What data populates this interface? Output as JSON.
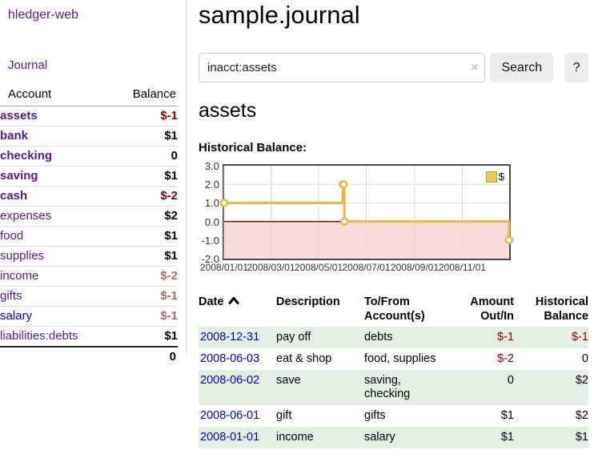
{
  "sidebar": {
    "brand": "hledger-web",
    "journal_link": "Journal",
    "accounts": {
      "headers": [
        "Account",
        "Balance"
      ],
      "rows": [
        {
          "name": "assets",
          "balance": "$-1"
        },
        {
          "name": "bank",
          "balance": "$1"
        },
        {
          "name": "checking",
          "balance": "0"
        },
        {
          "name": "saving",
          "balance": "$1"
        },
        {
          "name": "cash",
          "balance": "$-2"
        },
        {
          "name": "expenses",
          "balance": "$2"
        },
        {
          "name": "food",
          "balance": "$1"
        },
        {
          "name": "supplies",
          "balance": "$1"
        },
        {
          "name": "income",
          "balance": "$-2"
        },
        {
          "name": "gifts",
          "balance": "$-1"
        },
        {
          "name": "salary",
          "balance": "$-1"
        },
        {
          "name": "liabilities:debts",
          "balance": "$1"
        }
      ],
      "total": "0"
    }
  },
  "page": {
    "title": "sample.journal"
  },
  "search": {
    "value": "inacct:assets",
    "clear_icon": "×",
    "button_label": "Search",
    "help_label": "?"
  },
  "account_view": {
    "heading": "assets",
    "chart_title": "Historical Balance:"
  },
  "chart_data": {
    "type": "line",
    "title": "Historical Balance",
    "series": [
      {
        "name": "$",
        "color": "#e3bb45",
        "step": true,
        "points": [
          {
            "x": "2008/01/01",
            "y": 1
          },
          {
            "x": "2008/06/01",
            "y": 2
          },
          {
            "x": "2008/06/02",
            "y": 2
          },
          {
            "x": "2008/06/03",
            "y": 0
          },
          {
            "x": "2008/12/31",
            "y": -1
          }
        ]
      }
    ],
    "x_ticks": [
      "2008/01/01",
      "2008/03/01",
      "2008/05/01",
      "2008/07/01",
      "2008/09/01",
      "2008/11/01"
    ],
    "y_ticks": [
      "3.0",
      "2.0",
      "1.0",
      "0.0",
      "-1.0",
      "-2.0"
    ],
    "xlim": [
      "2008/01/01",
      "2008/12/31"
    ],
    "ylim": [
      -2,
      3
    ],
    "legend": "$",
    "legend_position": "top-right",
    "grid": true,
    "negative_region_color": "#fbdada",
    "zero_line_color": "#8b0000"
  },
  "register": {
    "headers": [
      "Date",
      "Description",
      "To/From\nAccount(s)",
      "Amount\nOut/In",
      "Historical\nBalance"
    ],
    "rows": [
      {
        "date": "2008-12-31",
        "description": "pay off",
        "accounts": "debts",
        "amount": "$-1",
        "balance": "$-1"
      },
      {
        "date": "2008-06-03",
        "description": "eat & shop",
        "accounts": "food, supplies",
        "amount": "$-2",
        "balance": "0"
      },
      {
        "date": "2008-06-02",
        "description": "save",
        "accounts": "saving,\nchecking",
        "amount": "0",
        "balance": "$2"
      },
      {
        "date": "2008-06-01",
        "description": "gift",
        "accounts": "gifts",
        "amount": "$1",
        "balance": "$2"
      },
      {
        "date": "2008-01-01",
        "description": "income",
        "accounts": "salary",
        "amount": "$1",
        "balance": "$1"
      }
    ]
  },
  "colors": {
    "link_purple": "#551a8b",
    "link_blue": "#0000cc",
    "negative": "#8b0000",
    "negative_muted": "#b36a6a",
    "row_stripe_green": "#e4efe4",
    "chart_line_gold": "#e3bb45"
  }
}
